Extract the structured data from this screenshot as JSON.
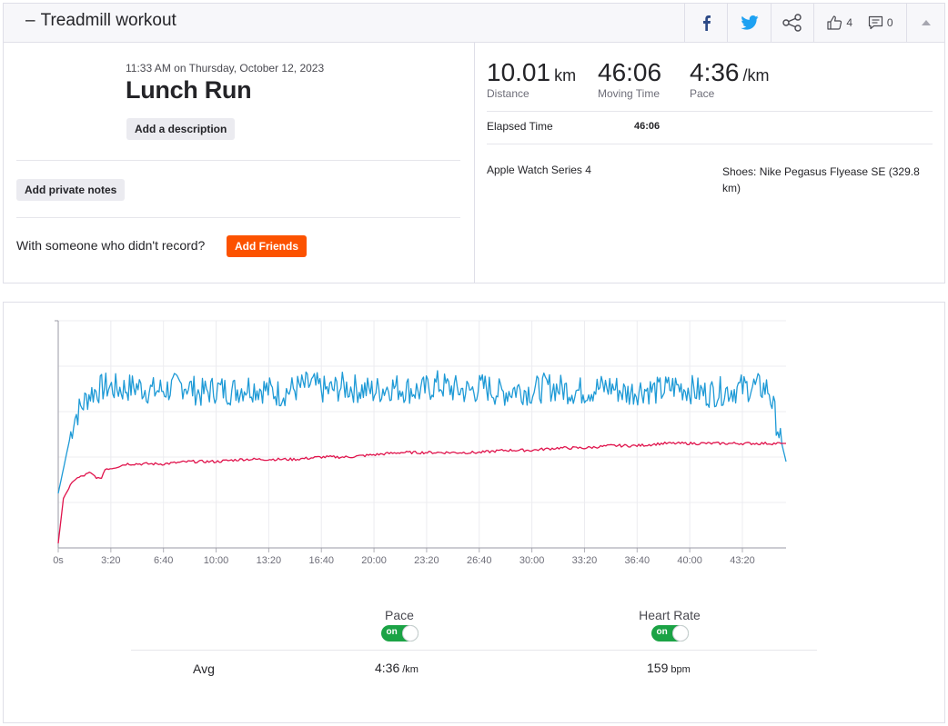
{
  "header": {
    "dash": "–",
    "title": "Treadmill workout",
    "kudos_count": "4",
    "comment_count": "0"
  },
  "activity": {
    "date": "11:33 AM on Thursday, October 12, 2023",
    "title": "Lunch Run",
    "add_description_label": "Add a description",
    "add_private_notes_label": "Add private notes",
    "with_someone_text": "With someone who didn't record?",
    "add_friends_label": "Add Friends"
  },
  "stats": {
    "distance": {
      "value": "10.01",
      "unit": "km",
      "label": "Distance"
    },
    "moving_time": {
      "value": "46:06",
      "label": "Moving Time"
    },
    "pace": {
      "value": "4:36",
      "unit": "/km",
      "label": "Pace"
    },
    "elapsed_label": "Elapsed Time",
    "elapsed_value": "46:06",
    "device": "Apple Watch Series 4",
    "shoes": "Shoes: Nike Pegasus Flyease SE (329.8 km)"
  },
  "colors": {
    "pace_line": "#1e9ad6",
    "heart_rate_line": "#e0134c",
    "toggle_on": "#1ba345",
    "brand": "#fc5200"
  },
  "chart_data": {
    "type": "line",
    "x_ticks": [
      "0s",
      "3:20",
      "6:40",
      "10:00",
      "13:20",
      "16:40",
      "20:00",
      "23:20",
      "26:40",
      "30:00",
      "33:20",
      "36:40",
      "40:00",
      "43:20"
    ],
    "x_tick_seconds": [
      0,
      200,
      400,
      600,
      800,
      1000,
      1200,
      1400,
      1600,
      1800,
      2000,
      2200,
      2400,
      2600
    ],
    "x_range_seconds": [
      0,
      2766
    ],
    "grid": true,
    "series": [
      {
        "name": "Pace",
        "key": "pace",
        "color": "#1e9ad6",
        "x": [
          0,
          60,
          120,
          180,
          240,
          300,
          360,
          420,
          480,
          540,
          600,
          660,
          720,
          780,
          840,
          900,
          960,
          1020,
          1080,
          1140,
          1200,
          1260,
          1320,
          1380,
          1440,
          1500,
          1560,
          1620,
          1680,
          1740,
          1800,
          1860,
          1920,
          1980,
          2040,
          2100,
          2160,
          2220,
          2280,
          2340,
          2400,
          2460,
          2520,
          2580,
          2640,
          2700,
          2766
        ],
        "y": [
          0.24,
          0.57,
          0.68,
          0.71,
          0.7,
          0.71,
          0.69,
          0.7,
          0.72,
          0.68,
          0.7,
          0.69,
          0.71,
          0.7,
          0.68,
          0.7,
          0.72,
          0.69,
          0.71,
          0.7,
          0.69,
          0.71,
          0.7,
          0.69,
          0.72,
          0.7,
          0.69,
          0.71,
          0.68,
          0.7,
          0.69,
          0.71,
          0.7,
          0.69,
          0.7,
          0.71,
          0.68,
          0.7,
          0.69,
          0.71,
          0.7,
          0.68,
          0.69,
          0.7,
          0.71,
          0.7,
          0.38
        ]
      },
      {
        "name": "Heart Rate",
        "key": "heart_rate",
        "color": "#e0134c",
        "x": [
          0,
          20,
          60,
          120,
          160,
          180,
          200,
          260,
          300,
          400,
          500,
          600,
          700,
          800,
          900,
          1000,
          1100,
          1200,
          1300,
          1400,
          1500,
          1600,
          1700,
          1800,
          1900,
          2000,
          2100,
          2200,
          2300,
          2400,
          2500,
          2600,
          2700,
          2766
        ],
        "y": [
          0.02,
          0.22,
          0.3,
          0.33,
          0.3,
          0.35,
          0.35,
          0.37,
          0.37,
          0.37,
          0.38,
          0.38,
          0.39,
          0.39,
          0.39,
          0.4,
          0.4,
          0.41,
          0.42,
          0.42,
          0.42,
          0.42,
          0.43,
          0.43,
          0.44,
          0.44,
          0.45,
          0.45,
          0.46,
          0.46,
          0.46,
          0.46,
          0.46,
          0.46
        ]
      }
    ]
  },
  "toggles": {
    "pace_title": "Pace",
    "heart_rate_title": "Heart Rate",
    "on_text": "on"
  },
  "averages": {
    "label": "Avg",
    "pace_value": "4:36",
    "pace_unit": "/km",
    "hr_value": "159",
    "hr_unit": "bpm"
  }
}
